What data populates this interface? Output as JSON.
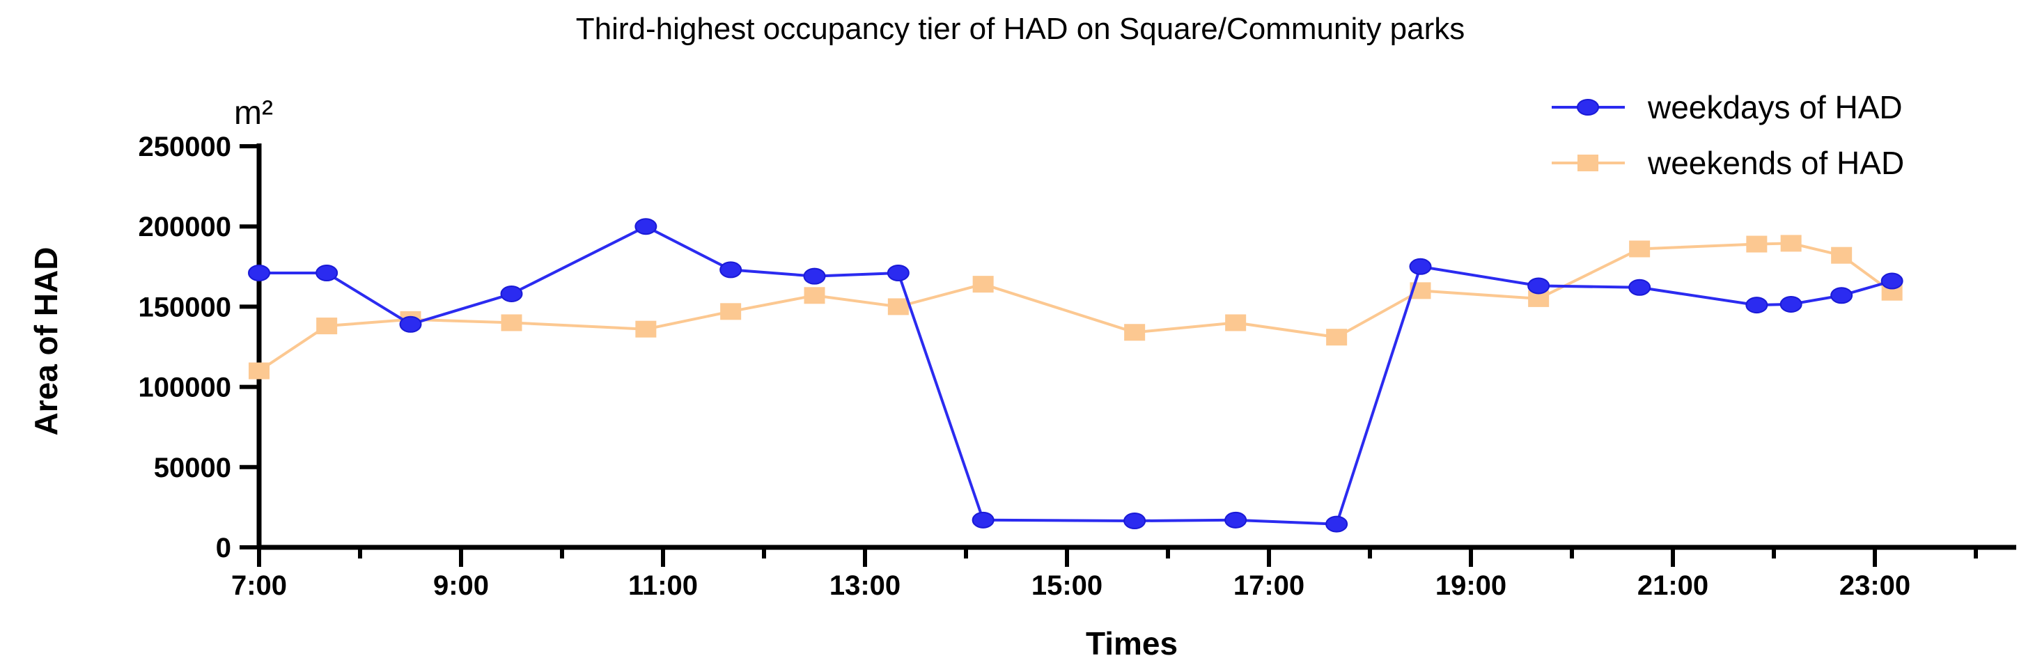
{
  "chart_data": {
    "type": "line",
    "title": "Third-highest occupancy tier of HAD on Square/Community parks",
    "xlabel": "Times",
    "ylabel": "Area of HAD",
    "y_unit": "m²",
    "xlim": [
      7.0,
      24.4
    ],
    "ylim": [
      0,
      250000
    ],
    "x_ticks": [
      {
        "value": 7,
        "label": "7:00"
      },
      {
        "value": 9,
        "label": "9:00"
      },
      {
        "value": 11,
        "label": "11:00"
      },
      {
        "value": 13,
        "label": "13:00"
      },
      {
        "value": 15,
        "label": "15:00"
      },
      {
        "value": 17,
        "label": "17:00"
      },
      {
        "value": 19,
        "label": "19:00"
      },
      {
        "value": 21,
        "label": "21:00"
      },
      {
        "value": 23,
        "label": "23:00"
      }
    ],
    "x_minor_ticks": [
      8,
      10,
      12,
      14,
      16,
      18,
      20,
      22,
      24
    ],
    "y_ticks": [
      {
        "value": 0,
        "label": "0"
      },
      {
        "value": 50000,
        "label": "50000"
      },
      {
        "value": 100000,
        "label": "100000"
      },
      {
        "value": 150000,
        "label": "150000"
      },
      {
        "value": 200000,
        "label": "200000"
      },
      {
        "value": 250000,
        "label": "250000"
      }
    ],
    "grid": false,
    "legend_position": "top-right",
    "series": [
      {
        "name": "weekdays of HAD",
        "color": "#2b2bf0",
        "marker": "circle",
        "points": [
          {
            "x": 7.0,
            "y": 171000
          },
          {
            "x": 7.67,
            "y": 171000
          },
          {
            "x": 8.5,
            "y": 139000
          },
          {
            "x": 9.5,
            "y": 158000
          },
          {
            "x": 10.83,
            "y": 200000
          },
          {
            "x": 11.67,
            "y": 173000
          },
          {
            "x": 12.5,
            "y": 169000
          },
          {
            "x": 13.33,
            "y": 171000
          },
          {
            "x": 14.17,
            "y": 17000
          },
          {
            "x": 15.67,
            "y": 16500
          },
          {
            "x": 16.67,
            "y": 17000
          },
          {
            "x": 17.67,
            "y": 14500
          },
          {
            "x": 18.5,
            "y": 175000
          },
          {
            "x": 19.67,
            "y": 163000
          },
          {
            "x": 20.67,
            "y": 162000
          },
          {
            "x": 21.83,
            "y": 151000
          },
          {
            "x": 22.17,
            "y": 151500
          },
          {
            "x": 22.67,
            "y": 157000
          },
          {
            "x": 23.17,
            "y": 166000
          }
        ]
      },
      {
        "name": "weekends of HAD",
        "color": "#fcc891",
        "marker": "square",
        "points": [
          {
            "x": 7.0,
            "y": 110000
          },
          {
            "x": 7.67,
            "y": 138000
          },
          {
            "x": 8.5,
            "y": 142000
          },
          {
            "x": 9.5,
            "y": 140000
          },
          {
            "x": 10.83,
            "y": 136000
          },
          {
            "x": 11.67,
            "y": 147000
          },
          {
            "x": 12.5,
            "y": 157000
          },
          {
            "x": 13.33,
            "y": 150000
          },
          {
            "x": 14.17,
            "y": 164000
          },
          {
            "x": 15.67,
            "y": 134000
          },
          {
            "x": 16.67,
            "y": 140000
          },
          {
            "x": 17.67,
            "y": 131000
          },
          {
            "x": 18.5,
            "y": 160000
          },
          {
            "x": 19.67,
            "y": 155000
          },
          {
            "x": 20.67,
            "y": 186000
          },
          {
            "x": 21.83,
            "y": 189000
          },
          {
            "x": 22.17,
            "y": 189500
          },
          {
            "x": 22.67,
            "y": 182000
          },
          {
            "x": 23.17,
            "y": 159000
          }
        ]
      }
    ]
  }
}
